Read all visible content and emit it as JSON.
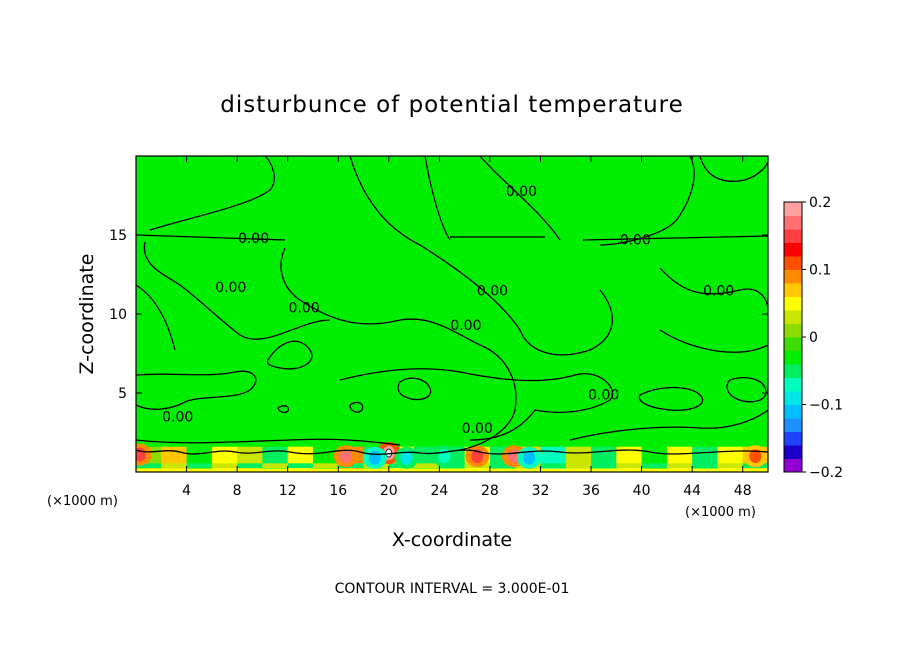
{
  "chart_data": {
    "type": "heatmap",
    "subtype": "filled-contour",
    "title": "disturbunce of potential temperature",
    "xlabel": "X-coordinate",
    "ylabel": "Z-coordinate",
    "x_unit": "(×1000 m)",
    "y_unit": "",
    "xlim": [
      0,
      50
    ],
    "ylim": [
      0,
      20
    ],
    "x_ticks": [
      4,
      8,
      12,
      16,
      20,
      24,
      28,
      32,
      36,
      40,
      44,
      48
    ],
    "y_ticks": [
      5,
      10,
      15
    ],
    "contour_interval_note": "CONTOUR INTERVAL = 3.000E-01",
    "contour_labels": [
      {
        "text": "0.00",
        "x": 9.3,
        "z": 14.8
      },
      {
        "text": "0.00",
        "x": 30.5,
        "z": 17.8
      },
      {
        "text": "0.00",
        "x": 39.5,
        "z": 14.7
      },
      {
        "text": "0.00",
        "x": 7.5,
        "z": 11.7
      },
      {
        "text": "0.00",
        "x": 13.3,
        "z": 10.4
      },
      {
        "text": "0.00",
        "x": 28.2,
        "z": 11.5
      },
      {
        "text": "0.00",
        "x": 26.1,
        "z": 9.3
      },
      {
        "text": "0.00",
        "x": 46.1,
        "z": 11.5
      },
      {
        "text": "0.00",
        "x": 37.0,
        "z": 4.9
      },
      {
        "text": "0.00",
        "x": 3.3,
        "z": 3.5
      },
      {
        "text": "0.00",
        "x": 27.0,
        "z": 2.8
      }
    ],
    "colorbar": {
      "min": -0.2,
      "max": 0.2,
      "tick_labels": [
        "0.2",
        "0.1",
        "0",
        "−0.1",
        "−0.2"
      ],
      "tick_values": [
        0.2,
        0.1,
        0,
        -0.1,
        -0.2
      ],
      "colors": [
        "#9400d3",
        "#1c00c8",
        "#1e44ff",
        "#1e90ff",
        "#00bfff",
        "#00e5e5",
        "#00ffbf",
        "#00ee60",
        "#00ee00",
        "#3cdc00",
        "#8cdc00",
        "#c8e600",
        "#ffff00",
        "#ffc800",
        "#ff8c00",
        "#ff5000",
        "#ff0000",
        "#ff4040",
        "#ff7070",
        "#ffa0a0"
      ]
    },
    "field_background_value": 0.0,
    "near_surface_features": [
      {
        "x": 0.3,
        "z": 1.1,
        "v": 0.15
      },
      {
        "x": 16.6,
        "z": 1.0,
        "v": 0.16
      },
      {
        "x": 20.0,
        "z": 1.2,
        "v": 0.2
      },
      {
        "x": 18.9,
        "z": 0.9,
        "v": -0.12
      },
      {
        "x": 21.4,
        "z": 0.9,
        "v": -0.1
      },
      {
        "x": 27.0,
        "z": 1.0,
        "v": 0.14
      },
      {
        "x": 29.9,
        "z": 1.0,
        "v": 0.16
      },
      {
        "x": 31.1,
        "z": 0.9,
        "v": -0.12
      },
      {
        "x": 24.4,
        "z": 1.0,
        "v": -0.08
      },
      {
        "x": 49.0,
        "z": 1.0,
        "v": 0.12
      }
    ]
  }
}
